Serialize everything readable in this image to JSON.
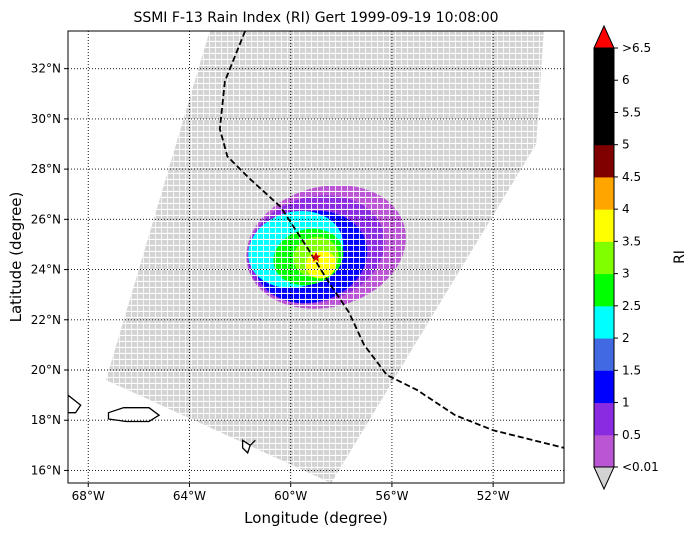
{
  "figure": {
    "title": "SSMI F-13 Rain Index (RI) Gert 1999-09-19 10:08:00",
    "xlabel": "Longitude (degree)",
    "ylabel": "Latitude (degree)",
    "colorbar_label": "RI"
  },
  "chart_data": {
    "type": "heatmap",
    "title": "SSMI F-13 Rain Index (RI) Gert 1999-09-19 10:08:00",
    "xlabel": "Longitude (degree)",
    "ylabel": "Latitude (degree)",
    "xlim": [
      -68.8,
      -49.2
    ],
    "ylim": [
      15.5,
      33.5
    ],
    "grid": true,
    "x_ticks": [
      {
        "value": -68,
        "label": "68°W"
      },
      {
        "value": -64,
        "label": "64°W"
      },
      {
        "value": -60,
        "label": "60°W"
      },
      {
        "value": -56,
        "label": "56°W"
      },
      {
        "value": -52,
        "label": "52°W"
      }
    ],
    "y_ticks": [
      {
        "value": 16,
        "label": "16°N"
      },
      {
        "value": 18,
        "label": "18°N"
      },
      {
        "value": 20,
        "label": "20°N"
      },
      {
        "value": 22,
        "label": "22°N"
      },
      {
        "value": 24,
        "label": "24°N"
      },
      {
        "value": 26,
        "label": "26°N"
      },
      {
        "value": 28,
        "label": "28°N"
      },
      {
        "value": 30,
        "label": "30°N"
      },
      {
        "value": 32,
        "label": "32°N"
      }
    ],
    "colorbar": {
      "label": "RI",
      "levels": [
        "<0.01",
        "0.5",
        "1",
        "1.5",
        "2",
        "2.5",
        "3",
        "3.5",
        "4",
        "4.5",
        "5",
        "5.5",
        "6",
        ">6.5"
      ],
      "colors": [
        "#ba55d3",
        "#8a2be2",
        "#0000ff",
        "#4169e1",
        "#00ffff",
        "#00ff00",
        "#7fff00",
        "#ffff00",
        "#ffa500",
        "#800000",
        "#000000",
        "#000000",
        "#000000"
      ],
      "under_color": "#d3d3d3",
      "over_color": "#ff0000"
    },
    "swath": {
      "corners": [
        [
          -63.2,
          33.5
        ],
        [
          -50.0,
          33.5
        ],
        [
          -50.3,
          29.0
        ],
        [
          -58.4,
          15.5
        ],
        [
          -67.3,
          19.6
        ]
      ],
      "background_color": "#d3d3d3"
    },
    "storm_center": {
      "lon": -59.0,
      "lat": 24.5
    },
    "storm_track": [
      [
        -61.8,
        33.5
      ],
      [
        -62.6,
        31.5
      ],
      [
        -62.8,
        29.6
      ],
      [
        -62.5,
        28.5
      ],
      [
        -61.6,
        27.6
      ],
      [
        -60.4,
        26.5
      ],
      [
        -59.3,
        24.8
      ],
      [
        -58.5,
        23.5
      ],
      [
        -57.7,
        22.3
      ],
      [
        -57.1,
        21.0
      ],
      [
        -56.2,
        19.8
      ],
      [
        -55.0,
        19.2
      ],
      [
        -53.5,
        18.2
      ],
      [
        -52.0,
        17.6
      ],
      [
        -50.8,
        17.3
      ],
      [
        -49.2,
        16.9
      ]
    ],
    "rain_features": [
      {
        "lon": -58.8,
        "lat": 24.2,
        "rx": 1.2,
        "ry": 1.1,
        "color": "#ffff00"
      },
      {
        "lon": -59.0,
        "lat": 24.5,
        "rx": 1.8,
        "ry": 1.6,
        "color": "#7fff00"
      },
      {
        "lon": -59.3,
        "lat": 24.5,
        "rx": 2.8,
        "ry": 2.2,
        "color": "#00ff00"
      },
      {
        "lon": -59.8,
        "lat": 24.8,
        "rx": 3.8,
        "ry": 3.0,
        "color": "#00ffff"
      },
      {
        "lon": -59.2,
        "lat": 24.5,
        "rx": 4.5,
        "ry": 3.6,
        "color": "#0000ff"
      },
      {
        "lon": -59.0,
        "lat": 24.8,
        "rx": 5.5,
        "ry": 4.2,
        "color": "#8a2be2"
      },
      {
        "lon": -58.6,
        "lat": 24.9,
        "rx": 6.4,
        "ry": 4.8,
        "color": "#ba55d3"
      }
    ],
    "land": [
      {
        "name": "Puerto Rico",
        "outline": [
          [
            -67.2,
            18.3
          ],
          [
            -66.6,
            18.5
          ],
          [
            -65.6,
            18.5
          ],
          [
            -65.2,
            18.2
          ],
          [
            -65.6,
            17.95
          ],
          [
            -66.5,
            17.95
          ],
          [
            -67.2,
            18.05
          ]
        ]
      },
      {
        "name": "Hispaniola",
        "outline": [
          [
            -68.8,
            19.0
          ],
          [
            -68.3,
            18.6
          ],
          [
            -68.5,
            18.3
          ],
          [
            -68.8,
            18.3
          ]
        ]
      },
      {
        "name": "Antigua",
        "outline": [
          [
            -61.9,
            17.2
          ],
          [
            -61.6,
            17.0
          ],
          [
            -61.4,
            17.2
          ],
          [
            -61.6,
            17.0
          ],
          [
            -61.7,
            16.7
          ],
          [
            -61.9,
            16.9
          ]
        ]
      }
    ]
  }
}
